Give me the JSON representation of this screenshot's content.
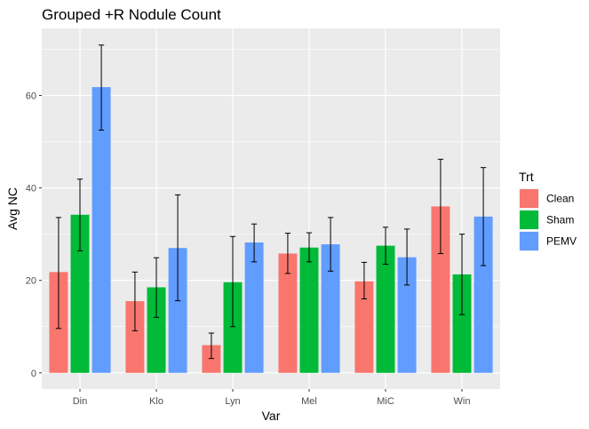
{
  "chart_data": {
    "type": "bar",
    "title": "Grouped +R Nodule Count",
    "xlabel": "Var",
    "ylabel": "Avg NC",
    "categories": [
      "Din",
      "Klo",
      "Lyn",
      "Mel",
      "MiC",
      "Win"
    ],
    "yticks": [
      0,
      20,
      40,
      60
    ],
    "ylim": [
      -3.5,
      74.5
    ],
    "legend": {
      "title": "Trt",
      "position": "right"
    },
    "series": [
      {
        "name": "Clean",
        "color": "#F8766D",
        "values": [
          21.8,
          15.5,
          6.0,
          25.8,
          19.8,
          36.0
        ],
        "err_low": [
          9.6,
          9.1,
          3.1,
          21.5,
          16.0,
          25.8
        ],
        "err_high": [
          33.6,
          21.8,
          8.6,
          30.2,
          23.9,
          46.2
        ]
      },
      {
        "name": "Sham",
        "color": "#00BA38",
        "values": [
          34.2,
          18.5,
          19.6,
          27.1,
          27.5,
          21.3
        ],
        "err_low": [
          26.4,
          12.0,
          10.0,
          24.0,
          23.5,
          12.6
        ],
        "err_high": [
          41.9,
          24.9,
          29.5,
          30.3,
          31.5,
          30.0
        ]
      },
      {
        "name": "PEMV",
        "color": "#619CFF",
        "values": [
          61.8,
          27.0,
          28.2,
          27.8,
          25.0,
          33.8
        ],
        "err_low": [
          52.5,
          15.6,
          24.0,
          22.0,
          19.0,
          23.2
        ],
        "err_high": [
          70.9,
          38.5,
          32.2,
          33.6,
          31.1,
          44.4
        ]
      }
    ],
    "grid": true,
    "error_bars": true
  }
}
